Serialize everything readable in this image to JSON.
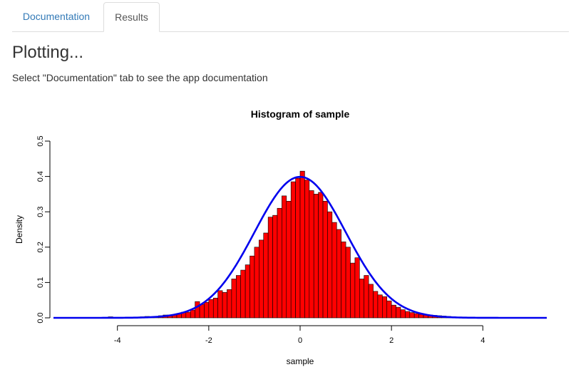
{
  "tabs": [
    {
      "label": "Documentation",
      "active": false
    },
    {
      "label": "Results",
      "active": true
    }
  ],
  "main": {
    "title": "Plotting...",
    "subtitle": "Select \"Documentation\" tab to see the app documentation"
  },
  "colors": {
    "link": "#337ab7",
    "bar_fill": "#ff0000",
    "bar_stroke": "#000000",
    "density_line": "#0000ee"
  },
  "chart_data": {
    "type": "bar",
    "title": "Histogram of sample",
    "xlabel": "sample",
    "ylabel": "Density",
    "xlim": [
      -5.4,
      5.4
    ],
    "ylim": [
      0,
      0.5
    ],
    "x_ticks": [
      -4,
      -2,
      0,
      2,
      4
    ],
    "y_ticks": [
      0.0,
      0.1,
      0.2,
      0.3,
      0.4,
      0.5
    ],
    "x_tick_labels": [
      "-4",
      "-2",
      "0",
      "2",
      "4"
    ],
    "y_tick_labels": [
      "0.0",
      "0.1",
      "0.2",
      "0.3",
      "0.4",
      "0.5"
    ],
    "bin_start": -4.2,
    "bin_width": 0.1,
    "values": [
      0.003,
      0.001,
      0.001,
      0.001,
      0.002,
      0.002,
      0.002,
      0.003,
      0.004,
      0.003,
      0.004,
      0.006,
      0.008,
      0.008,
      0.009,
      0.012,
      0.016,
      0.016,
      0.022,
      0.046,
      0.038,
      0.044,
      0.052,
      0.056,
      0.077,
      0.072,
      0.08,
      0.11,
      0.12,
      0.135,
      0.15,
      0.175,
      0.2,
      0.22,
      0.24,
      0.285,
      0.29,
      0.31,
      0.345,
      0.33,
      0.385,
      0.395,
      0.415,
      0.39,
      0.36,
      0.35,
      0.355,
      0.33,
      0.3,
      0.27,
      0.25,
      0.215,
      0.2,
      0.155,
      0.17,
      0.11,
      0.12,
      0.095,
      0.075,
      0.065,
      0.06,
      0.048,
      0.036,
      0.03,
      0.023,
      0.018,
      0.015,
      0.012,
      0.01,
      0.008,
      0.008,
      0.007,
      0.006,
      0.005,
      0.004,
      0.003,
      0.002,
      0.002,
      0.001,
      0.001
    ],
    "density_curve": {
      "type": "line",
      "distribution": "normal",
      "mean": 0,
      "sd": 1
    },
    "grid": false,
    "legend": "none"
  }
}
